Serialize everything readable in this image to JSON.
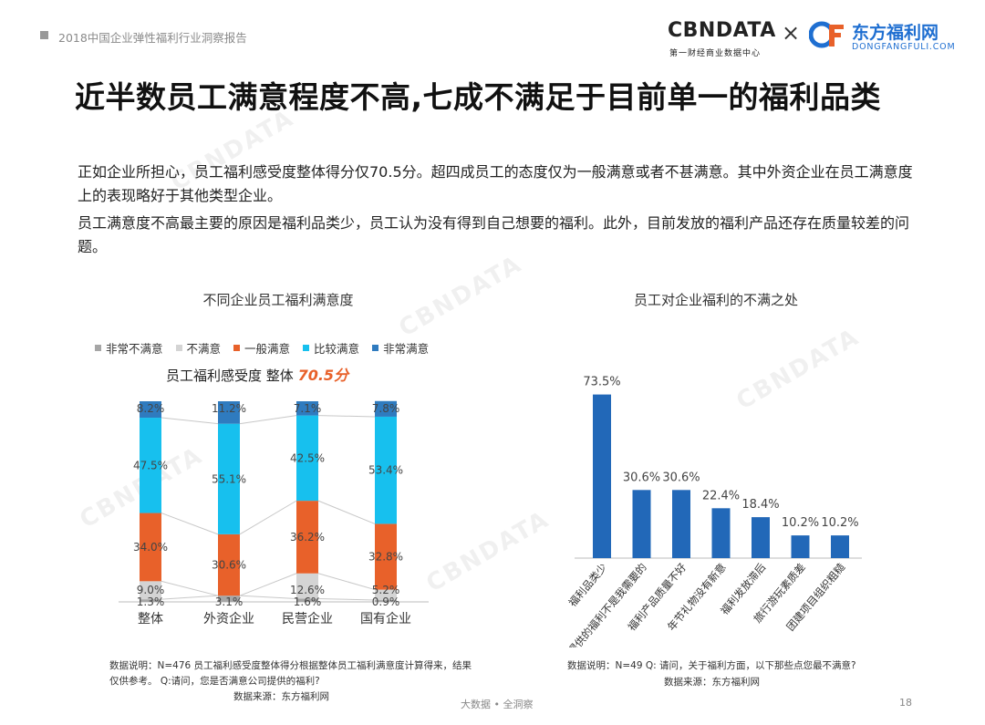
{
  "header": {
    "report_title": "2018中国企业弹性福利行业洞察报告",
    "logo_cbn": "CBNDATA",
    "logo_cbn_sub": "第一财经商业数据中心",
    "logo_x": "×",
    "logo_partner": "东方福利网",
    "logo_partner_sub": "DONGFANGFULI.COM"
  },
  "headline": "近半数员工满意程度不高,七成不满足于目前单一的福利品类",
  "paragraphs": [
    "正如企业所担心，员工福利感受度整体得分仅70.5分。超四成员工的态度仅为一般满意或者不甚满意。其中外资企业在员工满意度上的表现略好于其他类型企业。",
    "员工满意度不高最主要的原因是福利品类少，员工认为没有得到自己想要的福利。此外，目前发放的福利产品还存在质量较差的问题。"
  ],
  "left_chart": {
    "title": "不同企业员工福利满意度",
    "score_label": "员工福利感受度 整体",
    "score_value": "70.5分",
    "note": "数据说明：N=476  员工福利感受度整体得分根据整体员工福利满意度计算得来，结果仅供参考。 Q:请问，您是否满意公司提供的福利?",
    "source": "数据来源：东方福利网"
  },
  "right_chart": {
    "title": "员工对企业福利的不满之处",
    "note": "数据说明：N=49  Q: 请问，关于福利方面，以下那些点您最不满意?",
    "source": "数据来源：东方福利网"
  },
  "footer": {
    "center": "大数据 • 全洞察",
    "page": "18"
  },
  "colors": {
    "very_dissatisfied": "#a6a6a6",
    "dissatisfied": "#d4d4d4",
    "neutral": "#e8612a",
    "satisfied": "#17c0ee",
    "very_satisfied": "#2f7bbf",
    "bar_blue": "#2268b8",
    "accent_orange": "#e8612a"
  },
  "chart_data": [
    {
      "type": "bar",
      "stacked": true,
      "normalized": true,
      "categories": [
        "整体",
        "外资企业",
        "民营企业",
        "国有企业"
      ],
      "series": [
        {
          "name": "非常不满意",
          "values": [
            1.3,
            3.1,
            1.6,
            0.9
          ],
          "labels": [
            "1.3%",
            "3.1%",
            "1.6%",
            "0.9%"
          ]
        },
        {
          "name": "不满意",
          "values": [
            9.0,
            0.0,
            12.6,
            5.2
          ],
          "labels": [
            "9.0%",
            "",
            "12.6%",
            "5.2%"
          ]
        },
        {
          "name": "一般满意",
          "values": [
            34.0,
            30.6,
            36.2,
            32.8
          ],
          "labels": [
            "34.0%",
            "30.6%",
            "36.2%",
            "32.8%"
          ]
        },
        {
          "name": "比较满意",
          "values": [
            47.5,
            55.1,
            42.5,
            53.4
          ],
          "labels": [
            "47.5%",
            "55.1%",
            "42.5%",
            "53.4%"
          ]
        },
        {
          "name": "非常满意",
          "values": [
            8.2,
            11.2,
            7.1,
            7.8
          ],
          "labels": [
            "8.2%",
            "11.2%",
            "7.1%",
            "7.8%"
          ]
        }
      ],
      "legend_position": "top",
      "ylim": [
        0,
        100
      ]
    },
    {
      "type": "bar",
      "categories": [
        "福利品类少",
        "提供的福利不是我需要的",
        "福利产品质量不好",
        "年节礼物没有新意",
        "福利发放滞后",
        "旅行游玩素质差",
        "团建项目组织粗糙"
      ],
      "values": [
        73.5,
        30.6,
        30.6,
        22.4,
        18.4,
        10.2,
        10.2
      ],
      "labels": [
        "73.5%",
        "30.6%",
        "30.6%",
        "22.4%",
        "18.4%",
        "10.2%",
        "10.2%"
      ],
      "ylim": [
        0,
        80
      ]
    }
  ]
}
